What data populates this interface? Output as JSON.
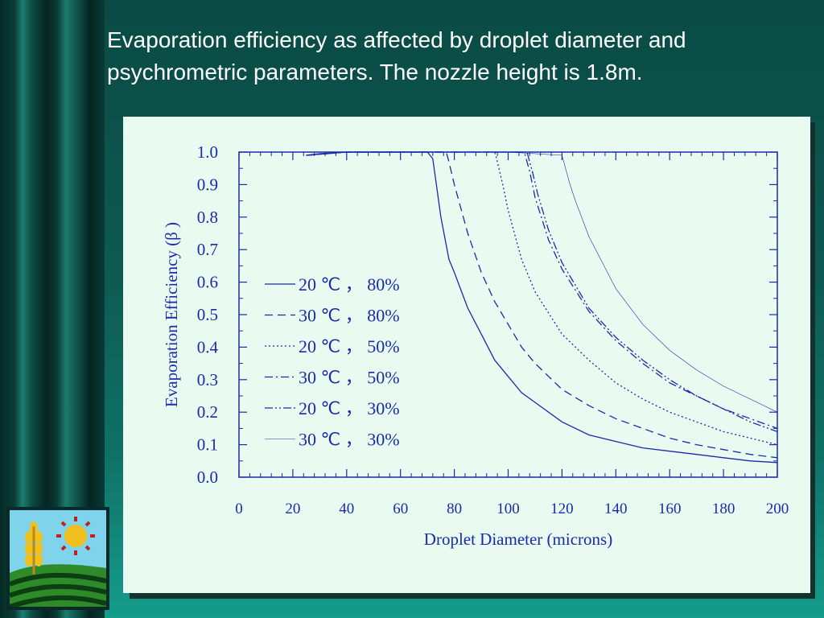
{
  "slide": {
    "title": "Evaporation efficiency as affected by droplet diameter and psychrometric parameters. The nozzle height is 1.8m."
  },
  "colors": {
    "line": "#1a2aa8",
    "panel": "#e9fbf1",
    "text": "#1a2aa8"
  },
  "chart_data": {
    "type": "line",
    "xlabel": "Droplet Diameter (microns)",
    "ylabel": "Evaporation Efficiency (β )",
    "xlim": [
      0,
      200
    ],
    "ylim": [
      0,
      1.0
    ],
    "xticks": [
      "0",
      "20",
      "40",
      "60",
      "80",
      "100",
      "120",
      "140",
      "160",
      "180",
      "200"
    ],
    "yticks": [
      "0.0",
      "0.1",
      "0.2",
      "0.3",
      "0.4",
      "0.5",
      "0.6",
      "0.7",
      "0.8",
      "0.9",
      "1.0"
    ],
    "legend_position": "center-left",
    "series": [
      {
        "name": "20 ℃ ， 80%",
        "dash": "solid",
        "x": [
          25,
          30,
          40,
          60,
          70,
          72,
          75,
          78,
          80,
          85,
          90,
          95,
          100,
          105,
          110,
          120,
          130,
          140,
          150,
          160,
          170,
          180,
          190,
          200
        ],
        "y": [
          0.99,
          0.995,
          1.0,
          1.0,
          1.0,
          0.98,
          0.8,
          0.67,
          0.63,
          0.52,
          0.44,
          0.36,
          0.31,
          0.26,
          0.23,
          0.17,
          0.13,
          0.11,
          0.09,
          0.08,
          0.07,
          0.06,
          0.05,
          0.045
        ]
      },
      {
        "name": "30 ℃ ， 80%",
        "dash": "dashed",
        "x": [
          25,
          40,
          60,
          77,
          78,
          80,
          85,
          90,
          95,
          100,
          105,
          110,
          120,
          130,
          140,
          150,
          160,
          170,
          180,
          190,
          200
        ],
        "y": [
          0.99,
          1.0,
          1.0,
          1.0,
          0.97,
          0.9,
          0.75,
          0.63,
          0.54,
          0.47,
          0.4,
          0.35,
          0.27,
          0.22,
          0.18,
          0.15,
          0.12,
          0.1,
          0.085,
          0.07,
          0.06
        ]
      },
      {
        "name": "20 ℃ ， 50%",
        "dash": "dotted",
        "x": [
          25,
          40,
          60,
          80,
          95,
          96,
          98,
          100,
          105,
          110,
          120,
          130,
          140,
          150,
          160,
          170,
          180,
          190,
          200
        ],
        "y": [
          0.99,
          1.0,
          1.0,
          1.0,
          1.0,
          0.97,
          0.9,
          0.82,
          0.67,
          0.57,
          0.44,
          0.36,
          0.29,
          0.24,
          0.2,
          0.17,
          0.14,
          0.12,
          0.1
        ]
      },
      {
        "name": "30 ℃ ， 50%",
        "dash": "dashdot",
        "x": [
          25,
          40,
          60,
          80,
          100,
          106,
          108,
          110,
          115,
          120,
          130,
          140,
          150,
          160,
          170,
          180,
          190,
          200
        ],
        "y": [
          0.99,
          1.0,
          1.0,
          1.0,
          1.0,
          1.0,
          0.94,
          0.86,
          0.73,
          0.64,
          0.51,
          0.42,
          0.35,
          0.29,
          0.25,
          0.21,
          0.18,
          0.15
        ]
      },
      {
        "name": "20 ℃ ， 30%",
        "dash": "dashdotdot",
        "x": [
          25,
          40,
          60,
          80,
          100,
          107,
          109,
          111,
          115,
          120,
          130,
          140,
          150,
          160,
          170,
          180,
          190,
          200
        ],
        "y": [
          0.99,
          1.0,
          1.0,
          1.0,
          1.0,
          1.0,
          0.94,
          0.87,
          0.76,
          0.66,
          0.52,
          0.43,
          0.36,
          0.3,
          0.25,
          0.21,
          0.17,
          0.14
        ]
      },
      {
        "name": "30 ℃ ， 30%",
        "dash": "thin",
        "x": [
          25,
          40,
          60,
          80,
          100,
          120,
          121,
          123,
          125,
          130,
          140,
          150,
          160,
          170,
          180,
          190,
          200
        ],
        "y": [
          0.99,
          1.0,
          1.0,
          1.0,
          1.0,
          0.99,
          0.96,
          0.9,
          0.85,
          0.74,
          0.58,
          0.47,
          0.39,
          0.33,
          0.28,
          0.24,
          0.2
        ]
      }
    ]
  }
}
